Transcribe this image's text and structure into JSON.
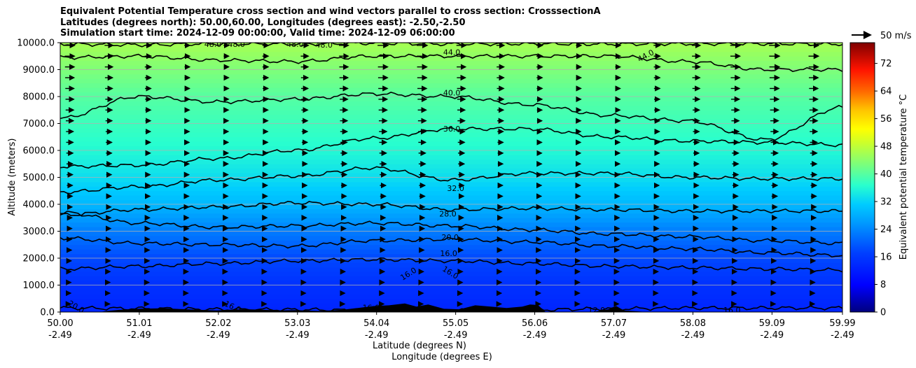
{
  "title_lines": [
    "Equivalent Potential Temperature cross section and wind vectors parallel to cross section: CrosssectionA",
    "Latitudes (degrees north): 50.00,60.00, Longitudes (degrees east): -2.50,-2.50",
    "Simulation start time: 2024-12-09 00:00:00, Valid time: 2024-12-09 06:00:00"
  ],
  "colors": {
    "terrain": "#000000",
    "contour": "#000000",
    "grid": "#b0b0b0"
  },
  "chart_data": {
    "type": "heatmap",
    "ylabel": "Altitude (meters)",
    "xlabel_lines": [
      "Latitude (degrees N)",
      "Longitude (degrees E)"
    ],
    "yticks": [
      "0.0",
      "1000.0",
      "2000.0",
      "3000.0",
      "4000.0",
      "5000.0",
      "6000.0",
      "7000.0",
      "8000.0",
      "9000.0",
      "10000.0"
    ],
    "ylim": [
      0,
      10000
    ],
    "xticks": [
      {
        "lat": "50.00",
        "lon": "-2.49"
      },
      {
        "lat": "51.01",
        "lon": "-2.49"
      },
      {
        "lat": "52.02",
        "lon": "-2.49"
      },
      {
        "lat": "53.03",
        "lon": "-2.49"
      },
      {
        "lat": "54.04",
        "lon": "-2.49"
      },
      {
        "lat": "55.05",
        "lon": "-2.49"
      },
      {
        "lat": "56.06",
        "lon": "-2.49"
      },
      {
        "lat": "57.07",
        "lon": "-2.49"
      },
      {
        "lat": "58.08",
        "lon": "-2.49"
      },
      {
        "lat": "59.09",
        "lon": "-2.49"
      },
      {
        "lat": "59.99",
        "lon": "-2.49"
      }
    ],
    "xlim": [
      50.0,
      59.99
    ],
    "grid": true,
    "colorbar": {
      "label": "Equivalent potential temperature °C",
      "ticks": [
        "0",
        "8",
        "16",
        "24",
        "32",
        "40",
        "48",
        "56",
        "64",
        "72"
      ],
      "range": [
        0,
        78
      ]
    },
    "quiver_key": "50 m/s",
    "contours": [
      {
        "level": 12,
        "label": "12.0",
        "lat": [
          50.0,
          51.0,
          52.0,
          53.0,
          54.0,
          55.0,
          56.0,
          57.0,
          58.0,
          59.0,
          59.99
        ],
        "alt": [
          150,
          130,
          100,
          90,
          60,
          60,
          80,
          120,
          150,
          150,
          150
        ]
      },
      {
        "level": 16,
        "label": "16.0",
        "lat": [
          50.0,
          51.0,
          52.0,
          53.0,
          54.0,
          55.0,
          56.0,
          57.0,
          58.0,
          59.0,
          59.99
        ],
        "alt": [
          1600,
          1700,
          1800,
          1900,
          1950,
          1900,
          1800,
          1700,
          1650,
          1600,
          1560
        ]
      },
      {
        "level": 20,
        "label": "20.0",
        "lat": [
          50.0,
          51.0,
          52.0,
          53.0,
          54.0,
          55.0,
          56.0,
          57.0,
          58.0,
          59.0,
          59.99
        ],
        "alt": [
          2750,
          2550,
          2500,
          2450,
          2650,
          2700,
          2600,
          2450,
          2350,
          2200,
          2100
        ]
      },
      {
        "level": 24,
        "label": "",
        "lat": [
          50.0,
          51.0,
          52.0,
          53.0,
          54.0,
          55.0,
          56.0,
          57.0,
          58.0,
          59.0,
          59.99
        ],
        "alt": [
          3700,
          3300,
          3150,
          3200,
          3300,
          3200,
          3050,
          2900,
          2800,
          2650,
          2550
        ]
      },
      {
        "level": 28,
        "label": "28.0",
        "lat": [
          50.0,
          51.0,
          52.0,
          53.0,
          54.0,
          55.0,
          56.0,
          57.0,
          58.0,
          59.0,
          59.99
        ],
        "alt": [
          3600,
          3800,
          3900,
          4050,
          4000,
          3800,
          3850,
          3800,
          3750,
          3750,
          3750
        ]
      },
      {
        "level": 32,
        "label": "32.0",
        "lat": [
          50.0,
          51.0,
          52.0,
          53.0,
          54.0,
          55.0,
          56.0,
          57.0,
          58.0,
          59.0,
          59.99
        ],
        "alt": [
          4450,
          4650,
          4900,
          5050,
          5350,
          4900,
          5150,
          5150,
          5000,
          4950,
          4950
        ]
      },
      {
        "level": 36,
        "label": "36.0",
        "lat": [
          50.0,
          51.0,
          52.0,
          53.0,
          54.0,
          55.0,
          56.0,
          57.0,
          58.0,
          59.0,
          59.99
        ],
        "alt": [
          5400,
          5450,
          5700,
          6000,
          6450,
          6800,
          6800,
          6500,
          6350,
          6300,
          6200
        ]
      },
      {
        "level": 40,
        "label": "40.0",
        "lat": [
          50.0,
          51.0,
          52.0,
          53.0,
          54.0,
          55.0,
          56.0,
          57.0,
          58.0,
          59.0,
          59.99
        ],
        "alt": [
          7200,
          8000,
          7800,
          7900,
          8100,
          8000,
          7700,
          7300,
          7100,
          6400,
          7600
        ]
      },
      {
        "level": 44,
        "label": "44.0",
        "lat": [
          50.0,
          51.0,
          52.0,
          53.0,
          54.0,
          55.0,
          56.0,
          57.0,
          58.0,
          59.0,
          59.99
        ],
        "alt": [
          9450,
          9500,
          9350,
          9300,
          9500,
          9500,
          9500,
          9500,
          9300,
          9000,
          9000
        ]
      },
      {
        "level": 48,
        "label": "48.0",
        "lat": [
          50.0,
          51.0,
          52.0,
          53.0,
          54.0,
          55.0,
          56.0,
          57.0,
          58.0,
          59.0,
          59.99
        ],
        "alt": [
          9950,
          9920,
          9960,
          9950,
          9980,
          9950,
          9960,
          9950,
          9960,
          9960,
          9950
        ]
      }
    ],
    "contour_labels": [
      {
        "text": "44.0",
        "lat": 55.0,
        "alt": 9620
      },
      {
        "text": "44.0",
        "lat": 57.48,
        "alt": 9500,
        "rotate": -28
      },
      {
        "text": "40.0",
        "lat": 55.0,
        "alt": 8120
      },
      {
        "text": "36.0",
        "lat": 55.0,
        "alt": 6780
      },
      {
        "text": "32.0",
        "lat": 55.05,
        "alt": 4570
      },
      {
        "text": "28.0",
        "lat": 54.95,
        "alt": 3620
      },
      {
        "text": "20.0",
        "lat": 54.98,
        "alt": 2750
      },
      {
        "text": "16.0",
        "lat": 54.96,
        "alt": 2150
      },
      {
        "text": "16.0",
        "lat": 54.45,
        "alt": 1400,
        "rotate": -32
      },
      {
        "text": "16.0",
        "lat": 54.98,
        "alt": 1450,
        "rotate": 32
      },
      {
        "text": "16.0",
        "lat": 52.2,
        "alt": 180,
        "rotate": 25
      },
      {
        "text": "16.0",
        "lat": 53.97,
        "alt": 140
      },
      {
        "text": "16.0",
        "lat": 58.58,
        "alt": 50
      },
      {
        "text": "20.0",
        "lat": 50.2,
        "alt": 180,
        "rotate": 30
      },
      {
        "text": "12.0",
        "lat": 56.85,
        "alt": 50
      },
      {
        "text": "48.0",
        "lat": 51.95,
        "alt": 9920
      },
      {
        "text": "48.0",
        "lat": 52.25,
        "alt": 9920
      },
      {
        "text": "48.0",
        "lat": 53.0,
        "alt": 9920
      },
      {
        "text": "48.0",
        "lat": 53.37,
        "alt": 9900
      }
    ],
    "theta_e_profile": [
      {
        "alt": 0,
        "value": 13
      },
      {
        "alt": 1000,
        "value": 15
      },
      {
        "alt": 2000,
        "value": 18
      },
      {
        "alt": 3000,
        "value": 23
      },
      {
        "alt": 4000,
        "value": 29
      },
      {
        "alt": 5000,
        "value": 33
      },
      {
        "alt": 6000,
        "value": 36
      },
      {
        "alt": 7000,
        "value": 38
      },
      {
        "alt": 8000,
        "value": 40
      },
      {
        "alt": 9000,
        "value": 43
      },
      {
        "alt": 10000,
        "value": 46
      }
    ],
    "terrain": {
      "lat": [
        50.0,
        50.5,
        50.6,
        50.75,
        51.0,
        51.3,
        51.6,
        52.0,
        52.2,
        52.4,
        52.6,
        52.8,
        53.0,
        53.3,
        53.6,
        53.8,
        54.0,
        54.2,
        54.4,
        54.55,
        54.7,
        54.9,
        55.1,
        55.3,
        55.5,
        55.7,
        55.9,
        56.0,
        56.1,
        56.2,
        56.5,
        56.8,
        57.0,
        57.1,
        57.2,
        57.5,
        57.8,
        58.0,
        58.5,
        59.0,
        59.5,
        59.99
      ],
      "alt": [
        0,
        0,
        40,
        80,
        120,
        140,
        100,
        60,
        90,
        100,
        80,
        60,
        70,
        40,
        80,
        150,
        220,
        250,
        320,
        200,
        280,
        120,
        100,
        250,
        200,
        150,
        200,
        280,
        260,
        0,
        0,
        0,
        100,
        220,
        60,
        0,
        0,
        0,
        0,
        0,
        0,
        0
      ]
    },
    "wind": {
      "lat_step": 0.5,
      "alt_step": 400,
      "max_speed_label": "50 m/s"
    }
  }
}
